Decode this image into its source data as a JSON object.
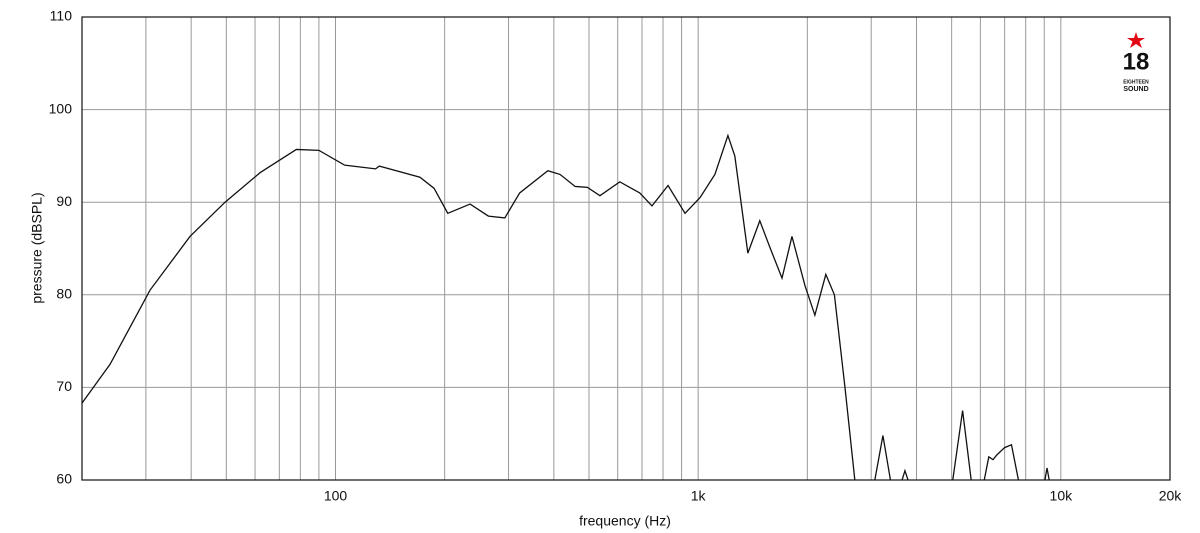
{
  "chart_data": {
    "type": "line",
    "xlabel": "frequency (Hz)",
    "ylabel": "pressure (dBSPL)",
    "xscale": "log",
    "xlim": [
      20,
      20000
    ],
    "ylim": [
      60,
      110
    ],
    "xticks": [
      100,
      {
        "value": 1000,
        "label": "1k"
      },
      {
        "value": 10000,
        "label": "10k"
      },
      {
        "value": 20000,
        "label": "20k"
      }
    ],
    "xminorticks": [
      30,
      40,
      50,
      60,
      70,
      80,
      90,
      200,
      300,
      400,
      500,
      600,
      700,
      800,
      900,
      2000,
      3000,
      4000,
      5000,
      6000,
      7000,
      8000,
      9000
    ],
    "yticks": [
      60,
      70,
      80,
      90,
      100,
      110
    ],
    "grid": true,
    "color": "#111111",
    "x": [
      20,
      23.9,
      30.8,
      39.7,
      49.6,
      62,
      78,
      90,
      106,
      129,
      132,
      171,
      187,
      204,
      235,
      264,
      293,
      322,
      385,
      416,
      458,
      495,
      536,
      608,
      690,
      746,
      826,
      920,
      1012,
      1112,
      1208,
      1262,
      1371,
      1479,
      1574,
      1703,
      1814,
      1970,
      2098,
      2249,
      2375,
      2540,
      2704,
      null,
      3070,
      3232,
      3390,
      null,
      3650,
      3717,
      3790,
      null,
      5036,
      5360,
      5660,
      null,
      6150,
      6330,
      6500,
      6660,
      7000,
      7310,
      7640,
      null,
      9040,
      9160,
      9290
    ],
    "values": [
      68.3,
      72.5,
      80.5,
      86.3,
      90,
      93.2,
      95.7,
      95.6,
      94,
      93.6,
      93.9,
      92.7,
      91.5,
      88.8,
      89.8,
      88.5,
      88.3,
      91,
      93.4,
      93,
      91.7,
      91.6,
      90.7,
      92.2,
      91,
      89.6,
      91.8,
      88.8,
      90.5,
      93,
      97.2,
      95,
      84.5,
      88,
      85.2,
      81.8,
      86.3,
      81,
      77.8,
      82.2,
      80,
      70,
      60,
      null,
      60,
      64.8,
      60,
      null,
      60,
      61,
      60,
      null,
      60,
      67.5,
      60,
      null,
      60,
      62.5,
      62.2,
      62.7,
      63.5,
      63.8,
      60,
      null,
      60,
      61.3,
      60
    ]
  },
  "logo": {
    "number": "18",
    "line1": "EIGHTEEN",
    "line2": "SOUND"
  }
}
